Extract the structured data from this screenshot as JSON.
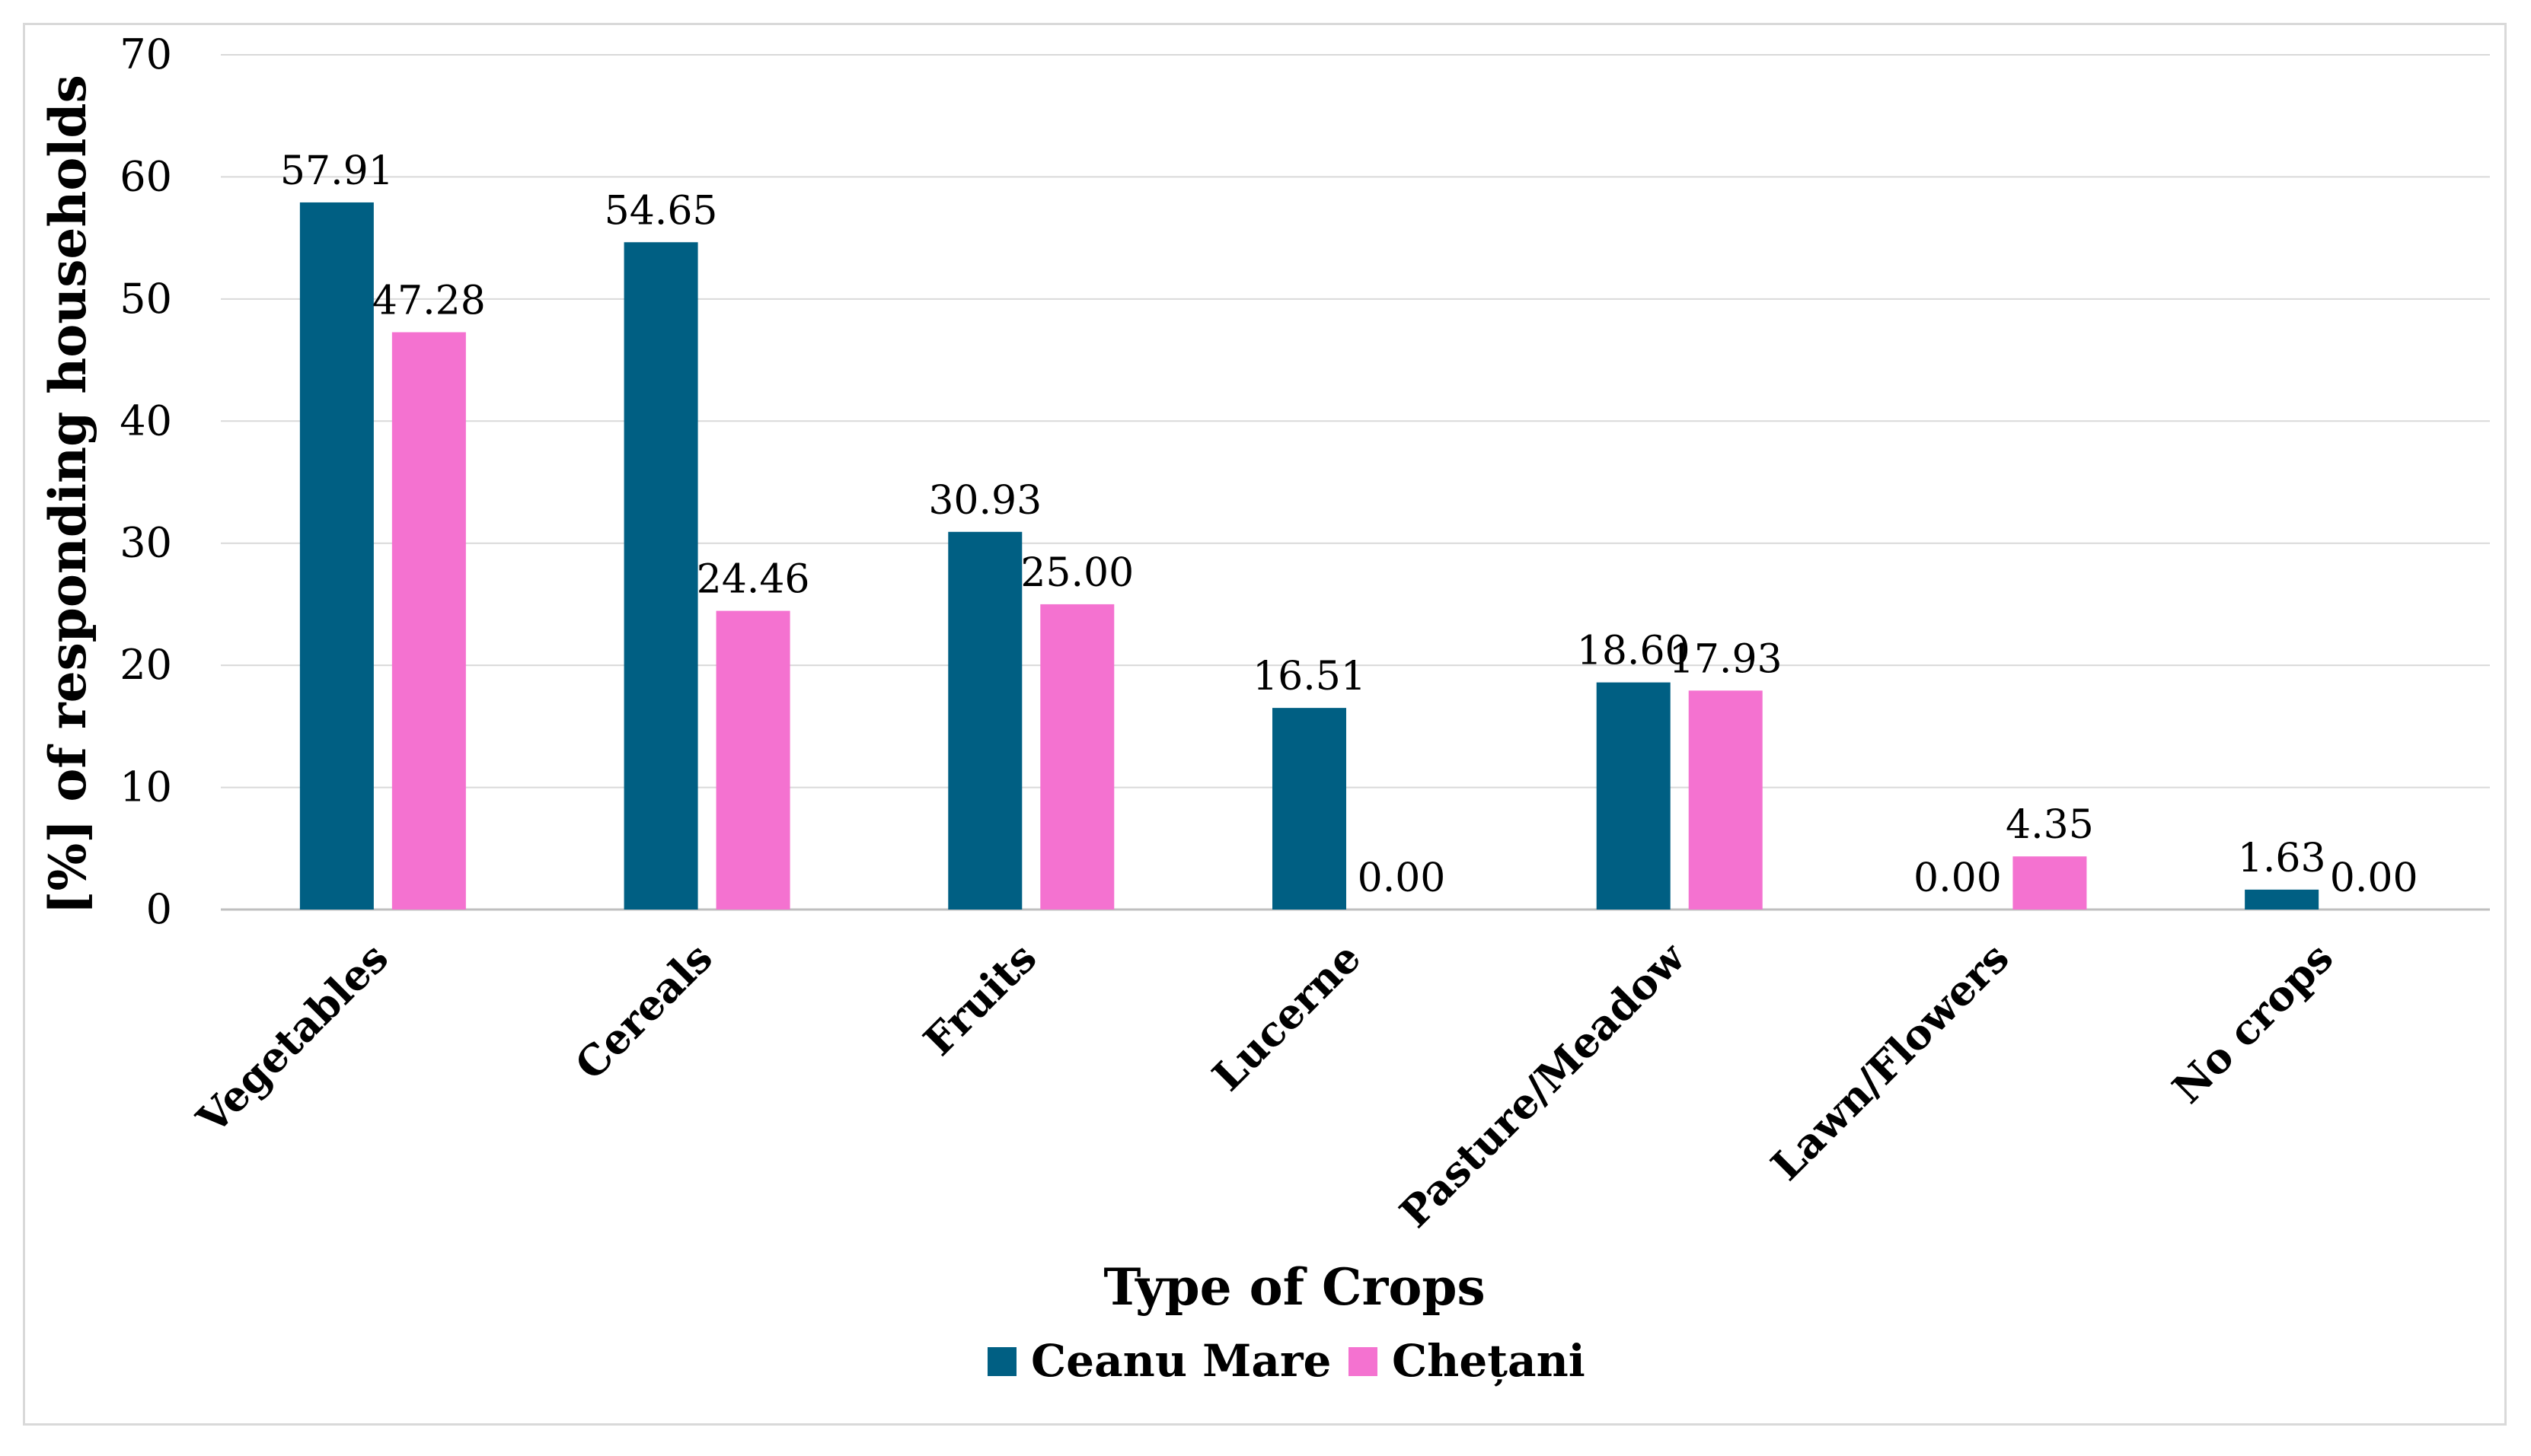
{
  "chart_data": {
    "type": "bar",
    "xlabel": "Type of Crops",
    "ylabel": "[%] of responding households",
    "ylim": [
      0,
      70
    ],
    "yticks": [
      0,
      10,
      20,
      30,
      40,
      50,
      60,
      70
    ],
    "grid": true,
    "legend_position": "bottom",
    "categories": [
      "Vegetables",
      "Cereals",
      "Fruits",
      "Lucerne",
      "Pasture/Meadow",
      "Lawn/Flowers",
      "No crops"
    ],
    "series": [
      {
        "name": "Ceanu Mare",
        "color": "#005f83",
        "values": [
          57.91,
          54.65,
          30.93,
          16.51,
          18.6,
          0.0,
          1.63
        ],
        "labels": [
          "57.91",
          "54.65",
          "30.93",
          "16.51",
          "18.60",
          "0.00",
          "1.63"
        ]
      },
      {
        "name": "Chețani",
        "color": "#f472d0",
        "values": [
          47.28,
          24.46,
          25.0,
          0.0,
          17.93,
          4.35,
          0.0
        ],
        "labels": [
          "47.28",
          "24.46",
          "25.00",
          "0.00",
          "17.93",
          "4.35",
          "0.00"
        ]
      }
    ]
  }
}
